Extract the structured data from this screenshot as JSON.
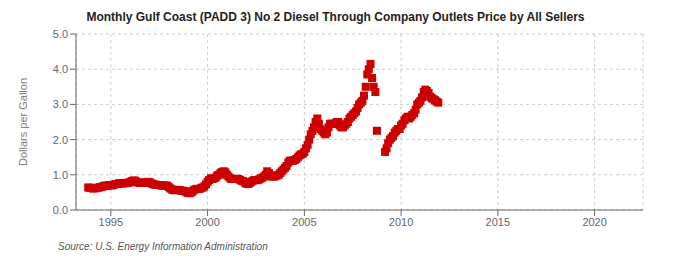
{
  "chart_data": {
    "type": "scatter",
    "title": "Monthly Gulf Coast (PADD 3) No 2 Diesel Through Company Outlets Price by All Sellers",
    "y_label": "Dollars per Gallon",
    "annotations": [
      "Source: U.S. Energy Information Administration"
    ],
    "color": "#cc0000",
    "marker": "square",
    "grid": true,
    "xlim": [
      1993.2,
      2022.5
    ],
    "ylim": [
      0.0,
      5.0
    ],
    "xticks": [
      1995,
      2000,
      2005,
      2010,
      2015,
      2020
    ],
    "yticks": [
      {
        "value": 0.0,
        "label": "0.0"
      },
      {
        "value": 1.0,
        "label": "1.0"
      },
      {
        "value": 2.0,
        "label": "2.0"
      },
      {
        "value": 3.0,
        "label": "3.0"
      },
      {
        "value": 4.0,
        "label": "4.0"
      },
      {
        "value": 5.0,
        "label": "5.0"
      }
    ],
    "x": [
      1993.83,
      1993.92,
      1994.0,
      1994.08,
      1994.17,
      1994.25,
      1994.33,
      1994.42,
      1994.5,
      1994.58,
      1994.67,
      1994.75,
      1994.83,
      1994.92,
      1995.0,
      1995.08,
      1995.17,
      1995.25,
      1995.33,
      1995.42,
      1995.5,
      1995.58,
      1995.67,
      1995.75,
      1995.83,
      1995.92,
      1996.0,
      1996.08,
      1996.17,
      1996.25,
      1996.33,
      1996.42,
      1996.5,
      1996.58,
      1996.67,
      1996.75,
      1996.83,
      1996.92,
      1997.0,
      1997.08,
      1997.17,
      1997.25,
      1997.33,
      1997.42,
      1997.5,
      1997.58,
      1997.67,
      1997.75,
      1997.83,
      1997.92,
      1998.0,
      1998.08,
      1998.17,
      1998.25,
      1998.33,
      1998.42,
      1998.5,
      1998.58,
      1998.67,
      1998.75,
      1998.83,
      1998.92,
      1999.0,
      1999.08,
      1999.17,
      1999.25,
      1999.33,
      1999.42,
      1999.5,
      1999.58,
      1999.67,
      1999.75,
      1999.83,
      1999.92,
      2000.0,
      2000.08,
      2000.17,
      2000.25,
      2000.33,
      2000.42,
      2000.5,
      2000.58,
      2000.67,
      2000.75,
      2000.83,
      2000.92,
      2001.0,
      2001.08,
      2001.17,
      2001.25,
      2001.33,
      2001.42,
      2001.5,
      2001.58,
      2001.67,
      2001.75,
      2001.83,
      2001.92,
      2002.0,
      2002.08,
      2002.17,
      2002.25,
      2002.33,
      2002.42,
      2002.5,
      2002.58,
      2002.67,
      2002.75,
      2002.83,
      2002.92,
      2003.0,
      2003.08,
      2003.17,
      2003.25,
      2003.33,
      2003.42,
      2003.5,
      2003.58,
      2003.67,
      2003.75,
      2003.83,
      2003.92,
      2004.0,
      2004.08,
      2004.17,
      2004.25,
      2004.33,
      2004.42,
      2004.5,
      2004.58,
      2004.67,
      2004.75,
      2004.83,
      2004.92,
      2005.0,
      2005.08,
      2005.17,
      2005.25,
      2005.33,
      2005.42,
      2005.5,
      2005.58,
      2005.67,
      2005.75,
      2005.83,
      2005.92,
      2006.0,
      2006.08,
      2006.17,
      2006.25,
      2006.33,
      2006.42,
      2006.5,
      2006.58,
      2006.67,
      2006.75,
      2006.83,
      2006.92,
      2007.0,
      2007.08,
      2007.17,
      2007.25,
      2007.33,
      2007.42,
      2007.5,
      2007.58,
      2007.67,
      2007.75,
      2007.83,
      2007.92,
      2008.0,
      2008.08,
      2008.17,
      2008.25,
      2008.33,
      2008.42,
      2008.5,
      2008.58,
      2008.67,
      2008.75,
      2009.17,
      2009.25,
      2009.33,
      2009.42,
      2009.5,
      2009.58,
      2009.67,
      2009.75,
      2009.83,
      2009.92,
      2010.0,
      2010.08,
      2010.17,
      2010.25,
      2010.33,
      2010.42,
      2010.5,
      2010.58,
      2010.67,
      2010.75,
      2010.83,
      2010.92,
      2011.0,
      2011.08,
      2011.17,
      2011.25,
      2011.33,
      2011.42,
      2011.5,
      2011.58,
      2011.67,
      2011.75,
      2011.83,
      2011.92
    ],
    "values": [
      0.64,
      0.63,
      0.63,
      0.61,
      0.62,
      0.62,
      0.63,
      0.65,
      0.65,
      0.67,
      0.69,
      0.69,
      0.69,
      0.71,
      0.7,
      0.7,
      0.72,
      0.74,
      0.74,
      0.76,
      0.76,
      0.75,
      0.76,
      0.76,
      0.77,
      0.78,
      0.79,
      0.82,
      0.84,
      0.83,
      0.8,
      0.78,
      0.77,
      0.77,
      0.77,
      0.78,
      0.79,
      0.8,
      0.79,
      0.76,
      0.74,
      0.72,
      0.72,
      0.71,
      0.71,
      0.7,
      0.69,
      0.69,
      0.7,
      0.69,
      0.65,
      0.61,
      0.58,
      0.57,
      0.56,
      0.57,
      0.57,
      0.56,
      0.55,
      0.54,
      0.53,
      0.5,
      0.48,
      0.48,
      0.5,
      0.55,
      0.58,
      0.6,
      0.6,
      0.6,
      0.62,
      0.64,
      0.67,
      0.73,
      0.8,
      0.85,
      0.9,
      0.88,
      0.9,
      0.92,
      0.98,
      1.0,
      1.05,
      1.08,
      1.1,
      1.07,
      1.0,
      0.95,
      0.9,
      0.88,
      0.88,
      0.88,
      0.89,
      0.88,
      0.86,
      0.83,
      0.82,
      0.78,
      0.75,
      0.74,
      0.76,
      0.8,
      0.83,
      0.85,
      0.85,
      0.85,
      0.87,
      0.9,
      0.92,
      0.95,
      1.0,
      1.1,
      1.05,
      0.98,
      0.95,
      0.95,
      0.96,
      0.98,
      1.0,
      1.05,
      1.1,
      1.15,
      1.2,
      1.25,
      1.35,
      1.4,
      1.4,
      1.4,
      1.42,
      1.45,
      1.5,
      1.55,
      1.58,
      1.6,
      1.65,
      1.75,
      1.85,
      2.0,
      2.15,
      2.25,
      2.35,
      2.5,
      2.6,
      2.45,
      2.3,
      2.25,
      2.2,
      2.15,
      2.2,
      2.35,
      2.45,
      2.45,
      2.45,
      2.45,
      2.5,
      2.5,
      2.4,
      2.35,
      2.35,
      2.4,
      2.45,
      2.5,
      2.6,
      2.65,
      2.7,
      2.75,
      2.8,
      2.9,
      3.0,
      3.05,
      3.1,
      3.25,
      3.5,
      3.85,
      4.0,
      4.15,
      3.75,
      3.5,
      3.35,
      2.25,
      1.65,
      1.75,
      1.9,
      2.0,
      2.05,
      2.1,
      2.2,
      2.25,
      2.3,
      2.3,
      2.4,
      2.45,
      2.55,
      2.6,
      2.65,
      2.6,
      2.65,
      2.7,
      2.75,
      2.85,
      3.0,
      3.05,
      3.1,
      3.2,
      3.35,
      3.42,
      3.38,
      3.32,
      3.22,
      3.18,
      3.15,
      3.12,
      3.08,
      3.05
    ]
  }
}
